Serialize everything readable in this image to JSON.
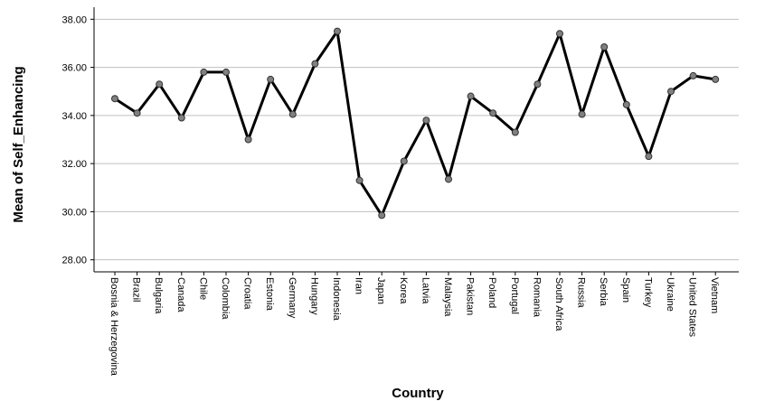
{
  "chart_data": {
    "type": "line",
    "title": "",
    "xlabel": "Country",
    "ylabel": "Mean of Self_Enhancing",
    "ylim": [
      27.5,
      38.5
    ],
    "y_ticks": [
      28,
      30,
      32,
      34,
      36,
      38
    ],
    "y_tick_labels": [
      "28.00",
      "30.00",
      "32.00",
      "34.00",
      "36.00",
      "38.00"
    ],
    "grid": "horizontal",
    "colors": {
      "line": "#000000",
      "marker_fill": "#808080",
      "marker_stroke": "#333333",
      "grid": "#c0c0c0",
      "axis": "#000000"
    },
    "categories": [
      "Bosnia & Herzegovina",
      "Brazil",
      "Bulgaria",
      "Canada",
      "Chile",
      "Colombia",
      "Croatia",
      "Estonia",
      "Germany",
      "Hungary",
      "Indonesia",
      "Iran",
      "Japan",
      "Korea",
      "Latvia",
      "Malaysia",
      "Pakistan",
      "Poland",
      "Portugal",
      "Romania",
      "South Africa",
      "Russia",
      "Serbia",
      "Spain",
      "Turkey",
      "Ukraine",
      "United States",
      "Vietnam"
    ],
    "series": [
      {
        "values": [
          34.7,
          34.1,
          35.3,
          33.9,
          35.8,
          35.8,
          33.0,
          35.5,
          34.05,
          36.15,
          37.5,
          31.3,
          29.85,
          32.1,
          33.8,
          31.35,
          34.8,
          34.1,
          33.3,
          35.3,
          37.4,
          34.05,
          36.85,
          34.45,
          32.3,
          35.0,
          35.65,
          35.5
        ]
      }
    ]
  }
}
